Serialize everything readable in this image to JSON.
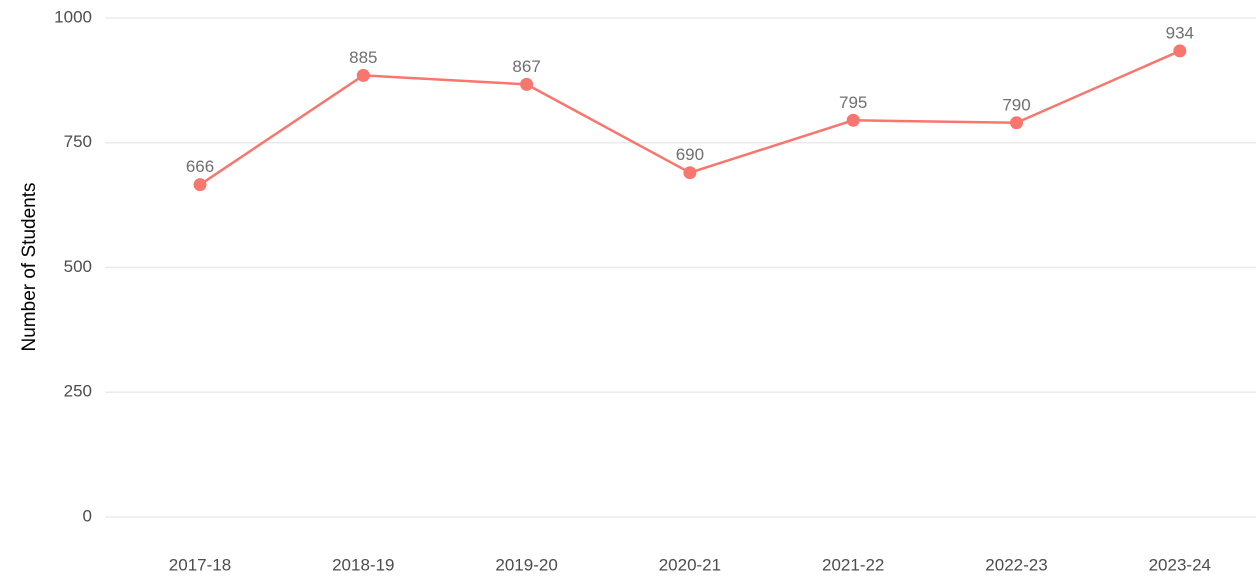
{
  "chart_data": {
    "type": "line",
    "y_label": "Number of Students",
    "categories": [
      "2017-18",
      "2018-19",
      "2019-20",
      "2020-21",
      "2021-22",
      "2022-23",
      "2023-24"
    ],
    "series": [
      {
        "name": "Students",
        "color": "#f8766d",
        "values": [
          666,
          885,
          867,
          690,
          795,
          790,
          934
        ]
      }
    ],
    "ylim": [
      0,
      1000
    ],
    "yticks": [
      0,
      250,
      500,
      750,
      1000
    ],
    "grid": true
  }
}
